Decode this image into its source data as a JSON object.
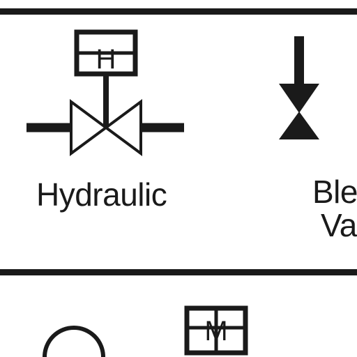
{
  "symbols": [
    {
      "label": "Hydraulic",
      "actuator_letter": "H"
    },
    {
      "label_line1": "Ble",
      "label_line2": "Va"
    },
    {
      "actuator_letter": "M"
    }
  ],
  "colors": {
    "line": "#1a1a1a",
    "background": "#ffffff"
  }
}
